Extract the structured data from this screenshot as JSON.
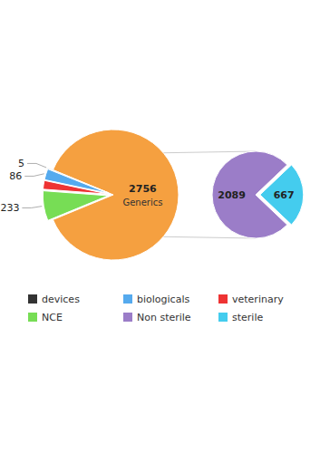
{
  "chart_data": [
    {
      "type": "pie",
      "categories": [
        "Generics",
        "NCE",
        "veterinary",
        "biologicals",
        "devices"
      ],
      "values": [
        2756,
        233,
        68,
        86,
        5
      ],
      "colors": [
        "#F5A040",
        "#77DD55",
        "#EE3333",
        "#55AAEE",
        "#333333"
      ],
      "data_labels": true,
      "value_labels": [
        "2756",
        "233",
        null,
        "86",
        "5"
      ],
      "legend": "bottom"
    },
    {
      "type": "pie",
      "categories": [
        "Non sterile",
        "sterile"
      ],
      "values": [
        2089,
        667
      ],
      "colors": [
        "#9B7DC8",
        "#44CCEE"
      ],
      "data_labels": true,
      "legend": "bottom"
    }
  ]
}
